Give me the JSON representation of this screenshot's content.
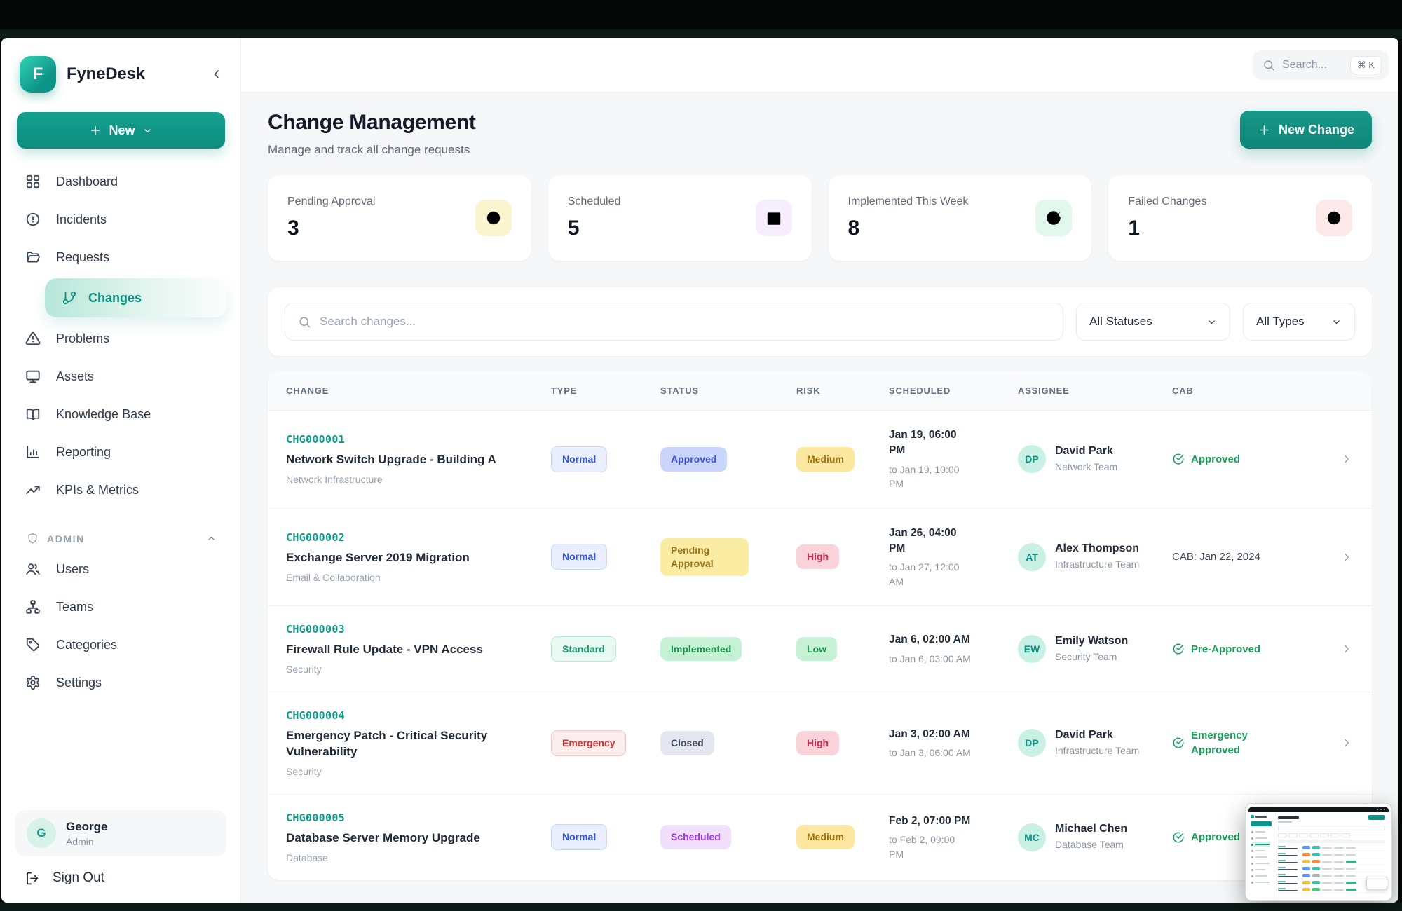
{
  "colors": {
    "brand_teal": "#0e9488",
    "brand_teal_dark": "#0b8f80",
    "approved_green": "#18a058",
    "pending_yellow": "#faeca3",
    "high_risk_red": "#c22a4e",
    "scheduled_purple": "#9d3be0"
  },
  "brand": {
    "name": "FyneDesk",
    "initial": "F"
  },
  "topbar": {
    "search_label": "Search...",
    "shortcut": "⌘ K"
  },
  "sidebar": {
    "new_button_label": "New",
    "items": [
      {
        "icon": "dashboard-icon",
        "label": "Dashboard",
        "active": false
      },
      {
        "icon": "incidents-icon",
        "label": "Incidents",
        "active": false
      },
      {
        "icon": "requests-icon",
        "label": "Requests",
        "active": false
      },
      {
        "icon": "changes-icon",
        "label": "Changes",
        "active": true
      },
      {
        "icon": "problems-icon",
        "label": "Problems",
        "active": false
      },
      {
        "icon": "assets-icon",
        "label": "Assets",
        "active": false
      },
      {
        "icon": "knowledge-base-icon",
        "label": "Knowledge Base",
        "active": false
      },
      {
        "icon": "reporting-icon",
        "label": "Reporting",
        "active": false
      },
      {
        "icon": "kpis-icon",
        "label": "KPIs & Metrics",
        "active": false
      }
    ],
    "admin_label": "ADMIN",
    "admin_items": [
      {
        "icon": "users-icon",
        "label": "Users"
      },
      {
        "icon": "teams-icon",
        "label": "Teams"
      },
      {
        "icon": "categories-icon",
        "label": "Categories"
      },
      {
        "icon": "settings-icon",
        "label": "Settings"
      }
    ],
    "profile": {
      "initial": "G",
      "name": "George",
      "role": "Admin"
    },
    "sign_out_label": "Sign Out"
  },
  "page": {
    "title": "Change Management",
    "subtitle": "Manage and track all change requests",
    "new_change_label": "New Change"
  },
  "stats": [
    {
      "label": "Pending Approval",
      "value": "3",
      "icon": "clock-icon",
      "color": "#c49a1f",
      "bg": "#fbf4cf"
    },
    {
      "label": "Scheduled",
      "value": "5",
      "icon": "calendar-icon",
      "color": "#a855f7",
      "bg": "#f6edfe"
    },
    {
      "label": "Implemented This Week",
      "value": "8",
      "icon": "check-circle-icon",
      "color": "#21a35b",
      "bg": "#e2f8ec"
    },
    {
      "label": "Failed Changes",
      "value": "1",
      "icon": "x-circle-icon",
      "color": "#d23b3b",
      "bg": "#fde9e9"
    }
  ],
  "filters": {
    "search_placeholder": "Search changes...",
    "status_filter_value": "All Statuses",
    "type_filter_value": "All Types"
  },
  "table": {
    "columns": [
      "CHANGE",
      "TYPE",
      "STATUS",
      "RISK",
      "SCHEDULED",
      "ASSIGNEE",
      "CAB"
    ],
    "rows": [
      {
        "id": "CHG000001",
        "title": "Network Switch Upgrade - Building A",
        "category": "Network Infrastructure",
        "type": "Normal",
        "type_style": "normal",
        "status": "Approved",
        "status_style": "approved",
        "risk": "Medium",
        "risk_style": "medium",
        "sched_start": "Jan 19, 06:00 PM",
        "sched_end": "to Jan 19, 10:00 PM",
        "initials": "DP",
        "assignee": "David Park",
        "team": "Network Team",
        "cab_approved": true,
        "cab_label": "Approved"
      },
      {
        "id": "CHG000002",
        "title": "Exchange Server 2019 Migration",
        "category": "Email & Collaboration",
        "type": "Normal",
        "type_style": "normal",
        "status": "Pending Approval",
        "status_style": "pending",
        "risk": "High",
        "risk_style": "high",
        "sched_start": "Jan 26, 04:00 PM",
        "sched_end": "to Jan 27, 12:00 AM",
        "initials": "AT",
        "assignee": "Alex Thompson",
        "team": "Infrastructure Team",
        "cab_approved": false,
        "cab_label": "CAB: Jan 22, 2024"
      },
      {
        "id": "CHG000003",
        "title": "Firewall Rule Update - VPN Access",
        "category": "Security",
        "type": "Standard",
        "type_style": "standard",
        "status": "Implemented",
        "status_style": "implemented",
        "risk": "Low",
        "risk_style": "low",
        "sched_start": "Jan 6, 02:00 AM",
        "sched_end": "to Jan 6, 03:00 AM",
        "initials": "EW",
        "assignee": "Emily Watson",
        "team": "Security Team",
        "cab_approved": true,
        "cab_label": "Pre-Approved"
      },
      {
        "id": "CHG000004",
        "title": "Emergency Patch - Critical Security Vulnerability",
        "category": "Security",
        "type": "Emergency",
        "type_style": "emergency",
        "status": "Closed",
        "status_style": "closed",
        "risk": "High",
        "risk_style": "high",
        "sched_start": "Jan 3, 02:00 AM",
        "sched_end": "to Jan 3, 06:00 AM",
        "initials": "DP",
        "assignee": "David Park",
        "team": "Infrastructure Team",
        "cab_approved": true,
        "cab_label": "Emergency Approved"
      },
      {
        "id": "CHG000005",
        "title": "Database Server Memory Upgrade",
        "category": "Database",
        "type": "Normal",
        "type_style": "normal",
        "status": "Scheduled",
        "status_style": "scheduled",
        "risk": "Medium",
        "risk_style": "medium",
        "sched_start": "Feb 2, 07:00 PM",
        "sched_end": "to Feb 2, 09:00 PM",
        "initials": "MC",
        "assignee": "Michael Chen",
        "team": "Database Team",
        "cab_approved": true,
        "cab_label": "Approved"
      }
    ]
  },
  "pip": {
    "rows": [
      {
        "pills": [
          "#3b82f6",
          "#14b8a6"
        ],
        "check": false
      },
      {
        "pills": [
          "#f97316",
          "#14b8a6"
        ],
        "check": false
      },
      {
        "pills": [
          "#eab308",
          "#f97316"
        ],
        "check": true
      },
      {
        "pills": [
          "#3b82f6",
          "#14b8a6"
        ],
        "check": false
      },
      {
        "pills": [
          "#3b82f6",
          "#a3a3a3"
        ],
        "check": false
      },
      {
        "pills": [
          "#eab308",
          "#14b8a6"
        ],
        "check": true
      },
      {
        "pills": [
          "#eab308",
          "#22c55e"
        ],
        "check": true
      }
    ]
  }
}
